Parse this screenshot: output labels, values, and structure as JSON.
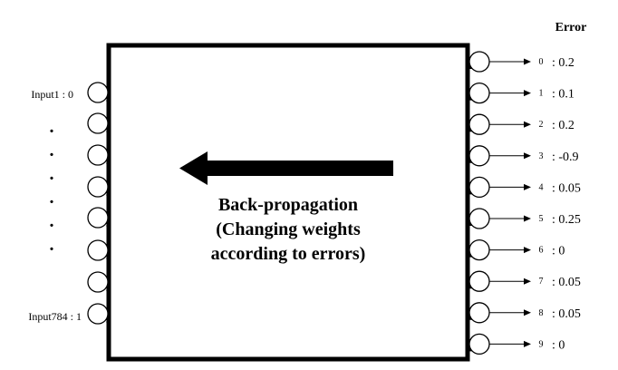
{
  "error_header": "Error",
  "error_header_color": "#e8120c",
  "center_label": {
    "lines": [
      "Back-propagation",
      "(Changing weights",
      "according to errors)"
    ]
  },
  "inputs": {
    "first_label": "Input1 : 0",
    "last_label": "Input784 : 1",
    "ellipsis_dots": [
      ".",
      ".",
      ".",
      ".",
      ".",
      "."
    ]
  },
  "outputs": [
    {
      "index": "0",
      "error": ": 0.2"
    },
    {
      "index": "1",
      "error": ": 0.1"
    },
    {
      "index": "2",
      "error": ": 0.2"
    },
    {
      "index": "3",
      "error": ": -0.9"
    },
    {
      "index": "4",
      "error": ": 0.05"
    },
    {
      "index": "5",
      "error": ": 0.25"
    },
    {
      "index": "6",
      "error": ": 0"
    },
    {
      "index": "7",
      "error": ": 0.05"
    },
    {
      "index": "8",
      "error": ": 0.05"
    },
    {
      "index": "9",
      "error": ": 0"
    }
  ],
  "arrow_direction": "left"
}
